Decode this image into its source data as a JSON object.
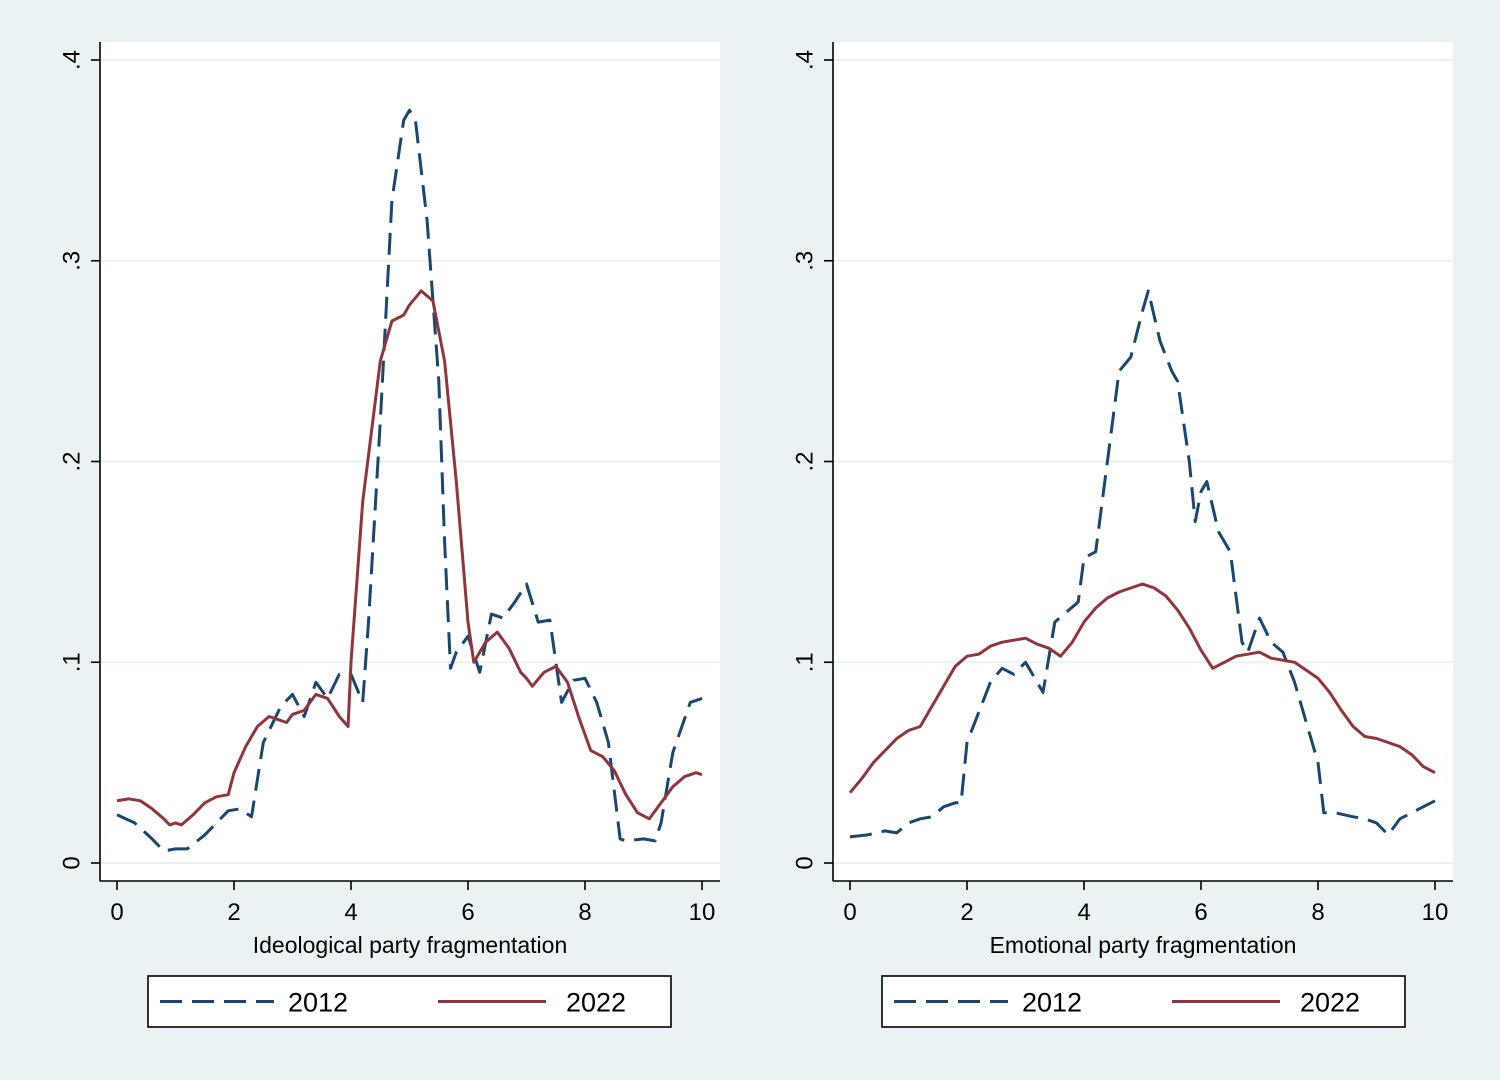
{
  "colors": {
    "background": "#eaf2f3",
    "plot_background": "#ffffff",
    "gridlines": "#eaf2f3",
    "series_2012": "#1a476f",
    "series_2022": "#90353b"
  },
  "chart_data": [
    {
      "type": "line",
      "xlabel": "Ideological party fragmentation",
      "ylabel": "",
      "xlim": [
        0,
        10
      ],
      "ylim": [
        0,
        0.4
      ],
      "x_ticks": [
        0,
        2,
        4,
        6,
        8,
        10
      ],
      "x_tick_labels": [
        "0",
        "2",
        "4",
        "6",
        "8",
        "10"
      ],
      "y_ticks": [
        0,
        0.1,
        0.2,
        0.3,
        0.4
      ],
      "y_tick_labels": [
        "0",
        ".1",
        ".2",
        ".3",
        ".4"
      ],
      "grid": true,
      "legend": {
        "position": "bottom",
        "entries": [
          "2012",
          "2022"
        ]
      },
      "series": [
        {
          "name": "2012",
          "style": "dashed",
          "color": "#1a476f",
          "x": [
            0,
            0.3,
            0.6,
            0.8,
            1.0,
            1.2,
            1.5,
            1.9,
            2.1,
            2.3,
            2.5,
            2.8,
            3.0,
            3.2,
            3.4,
            3.6,
            3.8,
            4.0,
            4.2,
            4.3,
            4.5,
            4.7,
            4.9,
            5.0,
            5.1,
            5.3,
            5.5,
            5.6,
            5.7,
            5.8,
            6.0,
            6.2,
            6.4,
            6.6,
            6.8,
            7.0,
            7.2,
            7.4,
            7.6,
            7.8,
            8.0,
            8.2,
            8.4,
            8.6,
            8.7,
            9.0,
            9.2,
            9.3,
            9.5,
            9.8,
            10.0
          ],
          "values": [
            0.024,
            0.02,
            0.012,
            0.006,
            0.007,
            0.007,
            0.014,
            0.026,
            0.027,
            0.023,
            0.06,
            0.078,
            0.084,
            0.073,
            0.09,
            0.082,
            0.094,
            0.094,
            0.08,
            0.12,
            0.22,
            0.33,
            0.37,
            0.375,
            0.37,
            0.32,
            0.24,
            0.16,
            0.097,
            0.105,
            0.113,
            0.095,
            0.124,
            0.122,
            0.13,
            0.139,
            0.12,
            0.121,
            0.08,
            0.091,
            0.092,
            0.08,
            0.06,
            0.012,
            0.011,
            0.012,
            0.011,
            0.02,
            0.055,
            0.08,
            0.082
          ]
        },
        {
          "name": "2022",
          "style": "solid",
          "color": "#90353b",
          "x": [
            0,
            0.2,
            0.4,
            0.6,
            0.8,
            0.9,
            1.0,
            1.1,
            1.3,
            1.5,
            1.7,
            1.9,
            2.0,
            2.2,
            2.4,
            2.6,
            2.8,
            2.9,
            3.0,
            3.2,
            3.4,
            3.6,
            3.8,
            3.95,
            4.0,
            4.2,
            4.5,
            4.7,
            4.9,
            5.0,
            5.2,
            5.4,
            5.6,
            5.8,
            6.0,
            6.1,
            6.3,
            6.5,
            6.7,
            6.9,
            7.0,
            7.1,
            7.3,
            7.5,
            7.7,
            7.9,
            8.1,
            8.3,
            8.5,
            8.7,
            8.9,
            9.1,
            9.3,
            9.5,
            9.7,
            9.9,
            10.0
          ],
          "values": [
            0.031,
            0.032,
            0.031,
            0.027,
            0.022,
            0.019,
            0.02,
            0.019,
            0.024,
            0.03,
            0.033,
            0.034,
            0.045,
            0.058,
            0.068,
            0.073,
            0.071,
            0.07,
            0.074,
            0.076,
            0.084,
            0.082,
            0.073,
            0.068,
            0.1,
            0.18,
            0.25,
            0.27,
            0.273,
            0.278,
            0.285,
            0.28,
            0.25,
            0.19,
            0.12,
            0.1,
            0.11,
            0.115,
            0.107,
            0.095,
            0.092,
            0.088,
            0.095,
            0.098,
            0.09,
            0.072,
            0.056,
            0.053,
            0.046,
            0.034,
            0.025,
            0.022,
            0.03,
            0.038,
            0.043,
            0.045,
            0.044
          ]
        }
      ]
    },
    {
      "type": "line",
      "xlabel": "Emotional party fragmentation",
      "ylabel": "",
      "xlim": [
        0,
        10
      ],
      "ylim": [
        0,
        0.4
      ],
      "x_ticks": [
        0,
        2,
        4,
        6,
        8,
        10
      ],
      "x_tick_labels": [
        "0",
        "2",
        "4",
        "6",
        "8",
        "10"
      ],
      "y_ticks": [
        0,
        0.1,
        0.2,
        0.3,
        0.4
      ],
      "y_tick_labels": [
        "0",
        ".1",
        ".2",
        ".3",
        ".4"
      ],
      "grid": true,
      "legend": {
        "position": "bottom",
        "entries": [
          "2012",
          "2022"
        ]
      },
      "series": [
        {
          "name": "2012",
          "style": "dashed",
          "color": "#1a476f",
          "x": [
            0,
            0.3,
            0.6,
            0.8,
            1.0,
            1.2,
            1.4,
            1.6,
            1.8,
            1.9,
            2.0,
            2.2,
            2.4,
            2.6,
            2.8,
            3.0,
            3.2,
            3.3,
            3.5,
            3.7,
            3.9,
            4.0,
            4.2,
            4.4,
            4.6,
            4.8,
            5.0,
            5.1,
            5.3,
            5.5,
            5.6,
            5.8,
            5.9,
            6.0,
            6.1,
            6.3,
            6.5,
            6.7,
            6.8,
            7.0,
            7.2,
            7.4,
            7.6,
            7.8,
            8.0,
            8.1,
            8.3,
            8.6,
            8.8,
            9.0,
            9.2,
            9.4,
            9.6,
            10.0
          ],
          "values": [
            0.013,
            0.014,
            0.016,
            0.015,
            0.02,
            0.022,
            0.023,
            0.028,
            0.03,
            0.03,
            0.06,
            0.075,
            0.09,
            0.097,
            0.094,
            0.1,
            0.09,
            0.085,
            0.12,
            0.125,
            0.13,
            0.152,
            0.155,
            0.2,
            0.245,
            0.252,
            0.275,
            0.285,
            0.26,
            0.245,
            0.24,
            0.2,
            0.17,
            0.185,
            0.19,
            0.165,
            0.155,
            0.11,
            0.105,
            0.122,
            0.11,
            0.105,
            0.09,
            0.07,
            0.05,
            0.025,
            0.025,
            0.023,
            0.022,
            0.02,
            0.014,
            0.022,
            0.025,
            0.031
          ]
        },
        {
          "name": "2022",
          "style": "solid",
          "color": "#90353b",
          "x": [
            0,
            0.2,
            0.4,
            0.6,
            0.8,
            1.0,
            1.2,
            1.4,
            1.6,
            1.8,
            2.0,
            2.2,
            2.4,
            2.6,
            2.8,
            3.0,
            3.2,
            3.4,
            3.6,
            3.8,
            4.0,
            4.2,
            4.4,
            4.6,
            4.8,
            5.0,
            5.2,
            5.4,
            5.6,
            5.8,
            6.0,
            6.2,
            6.4,
            6.6,
            6.8,
            7.0,
            7.2,
            7.4,
            7.6,
            7.8,
            8.0,
            8.2,
            8.4,
            8.6,
            8.8,
            9.0,
            9.2,
            9.4,
            9.6,
            9.8,
            10.0
          ],
          "values": [
            0.035,
            0.042,
            0.05,
            0.056,
            0.062,
            0.066,
            0.068,
            0.078,
            0.088,
            0.098,
            0.103,
            0.104,
            0.108,
            0.11,
            0.111,
            0.112,
            0.109,
            0.107,
            0.103,
            0.11,
            0.12,
            0.127,
            0.132,
            0.135,
            0.137,
            0.139,
            0.137,
            0.133,
            0.126,
            0.117,
            0.106,
            0.097,
            0.1,
            0.103,
            0.104,
            0.105,
            0.102,
            0.101,
            0.1,
            0.096,
            0.092,
            0.085,
            0.076,
            0.068,
            0.063,
            0.062,
            0.06,
            0.058,
            0.054,
            0.048,
            0.045
          ]
        }
      ]
    }
  ]
}
